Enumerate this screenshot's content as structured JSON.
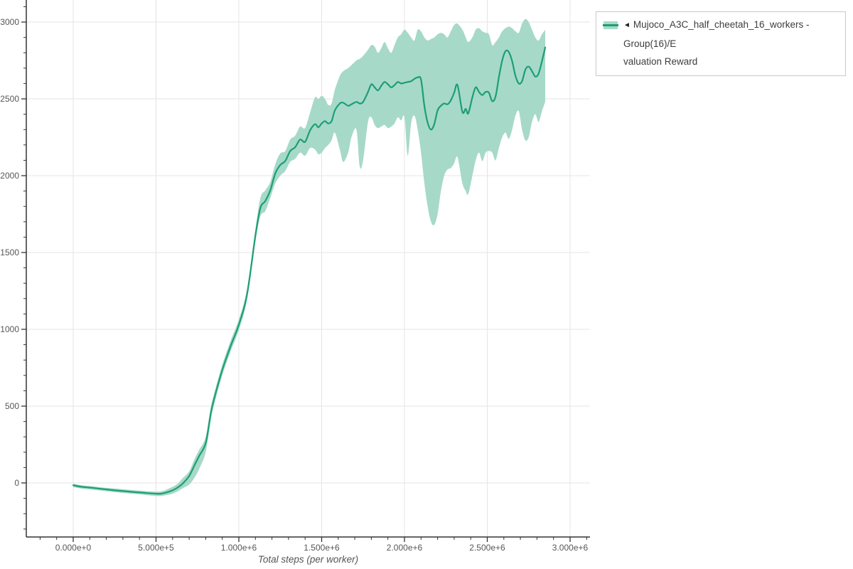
{
  "figure": {
    "background_color": "#ffffff"
  },
  "legend": {
    "toggle_icon": "◄",
    "series_label": "Mujoco_A3C_half_cheetah_16_workers - Group(16)/Evaluation Reward",
    "label_line1": "Mujoco_A3C_half_cheetah_16_workers - Group(16)/E",
    "label_line2": "valuation Reward",
    "swatch_band_color": "#a7d9c8",
    "swatch_line_color": "#1b9e77"
  },
  "chart_data": {
    "type": "line",
    "title": "",
    "xlabel": "Total steps (per worker)",
    "ylabel": "",
    "grid": true,
    "legend_position": "outside-top-right",
    "x_tick_values": [
      0,
      500000,
      1000000,
      1500000,
      2000000,
      2500000,
      3000000
    ],
    "x_tick_labels": [
      "0.000e+0",
      "5.000e+5",
      "1.000e+6",
      "1.500e+6",
      "2.000e+6",
      "2.500e+6",
      "3.000e+6"
    ],
    "x_minor_step": 100000,
    "y_tick_values": [
      0,
      500,
      1000,
      1500,
      2000,
      2500,
      3000
    ],
    "y_tick_labels": [
      "0",
      "500",
      "1000",
      "1500",
      "2000",
      "2500",
      "3000"
    ],
    "y_minor_step": 100,
    "xlim": [
      -283000,
      3120000
    ],
    "ylim": [
      -352,
      3143
    ],
    "colors": {
      "grid": "#e4e4e4",
      "axis": "#333333",
      "tick_label": "#565656",
      "axis_title": "#555555"
    },
    "series": [
      {
        "name": "Mujoco_A3C_half_cheetah_16_workers - Group(16)/Evaluation Reward",
        "line_color": "#1b9e77",
        "band_color": "#a7d9c8",
        "x": [
          0,
          50000,
          100000,
          150000,
          200000,
          250000,
          300000,
          350000,
          400000,
          450000,
          500000,
          530000,
          560000,
          600000,
          630000,
          660000,
          700000,
          730000,
          760000,
          800000,
          830000,
          850000,
          900000,
          950000,
          1000000,
          1050000,
          1100000,
          1130000,
          1160000,
          1190000,
          1220000,
          1250000,
          1280000,
          1310000,
          1340000,
          1370000,
          1400000,
          1430000,
          1460000,
          1480000,
          1500000,
          1520000,
          1540000,
          1560000,
          1580000,
          1610000,
          1630000,
          1660000,
          1680000,
          1710000,
          1730000,
          1750000,
          1780000,
          1800000,
          1820000,
          1840000,
          1860000,
          1880000,
          1900000,
          1920000,
          1940000,
          1960000,
          1980000,
          2000000,
          2020000,
          2040000,
          2060000,
          2080000,
          2100000,
          2120000,
          2140000,
          2160000,
          2180000,
          2200000,
          2220000,
          2240000,
          2260000,
          2280000,
          2300000,
          2320000,
          2350000,
          2370000,
          2385000,
          2410000,
          2430000,
          2450000,
          2470000,
          2490000,
          2510000,
          2530000,
          2550000,
          2570000,
          2590000,
          2610000,
          2630000,
          2650000,
          2670000,
          2690000,
          2710000,
          2730000,
          2750000,
          2770000,
          2790000,
          2810000,
          2830000,
          2850000
        ],
        "mean": [
          -15,
          -25,
          -30,
          -36,
          -42,
          -48,
          -53,
          -58,
          -62,
          -66,
          -70,
          -70,
          -63,
          -48,
          -30,
          -5,
          45,
          110,
          175,
          260,
          450,
          545,
          735,
          890,
          1030,
          1230,
          1610,
          1790,
          1835,
          1905,
          2015,
          2070,
          2095,
          2160,
          2185,
          2235,
          2220,
          2295,
          2335,
          2315,
          2340,
          2355,
          2340,
          2355,
          2425,
          2470,
          2475,
          2455,
          2465,
          2480,
          2470,
          2480,
          2545,
          2595,
          2575,
          2555,
          2585,
          2610,
          2595,
          2575,
          2590,
          2610,
          2600,
          2605,
          2610,
          2615,
          2630,
          2640,
          2625,
          2455,
          2345,
          2300,
          2335,
          2425,
          2455,
          2470,
          2465,
          2490,
          2540,
          2590,
          2415,
          2435,
          2405,
          2510,
          2575,
          2545,
          2525,
          2545,
          2540,
          2485,
          2515,
          2640,
          2750,
          2810,
          2805,
          2745,
          2650,
          2600,
          2615,
          2690,
          2710,
          2680,
          2645,
          2665,
          2745,
          2835
        ],
        "band_lower": [
          -27,
          -37,
          -42,
          -48,
          -54,
          -60,
          -65,
          -70,
          -74,
          -80,
          -85,
          -85,
          -80,
          -70,
          -55,
          -35,
          -10,
          30,
          90,
          200,
          400,
          505,
          700,
          855,
          995,
          1195,
          1570,
          1735,
          1770,
          1855,
          1950,
          2000,
          2030,
          2090,
          2110,
          2150,
          2130,
          2180,
          2170,
          2140,
          2150,
          2180,
          2200,
          2230,
          2280,
          2170,
          2090,
          2150,
          2250,
          2300,
          2060,
          2100,
          2350,
          2380,
          2330,
          2310,
          2320,
          2330,
          2310,
          2320,
          2340,
          2380,
          2360,
          2380,
          2130,
          2340,
          2390,
          2300,
          2150,
          1950,
          1800,
          1700,
          1680,
          1750,
          1900,
          2000,
          2040,
          2050,
          2080,
          2120,
          1950,
          1900,
          1880,
          2000,
          2100,
          2150,
          2095,
          2150,
          2160,
          2150,
          2100,
          2180,
          2250,
          2280,
          2240,
          2300,
          2390,
          2420,
          2300,
          2230,
          2250,
          2350,
          2400,
          2350,
          2420,
          2480
        ],
        "band_upper": [
          -5,
          -15,
          -20,
          -26,
          -32,
          -36,
          -41,
          -46,
          -50,
          -54,
          -57,
          -55,
          -45,
          -25,
          -5,
          30,
          75,
          150,
          215,
          300,
          490,
          580,
          770,
          925,
          1065,
          1265,
          1650,
          1855,
          1905,
          1960,
          2075,
          2145,
          2160,
          2235,
          2260,
          2320,
          2310,
          2410,
          2510,
          2500,
          2520,
          2500,
          2460,
          2470,
          2560,
          2650,
          2680,
          2700,
          2720,
          2750,
          2760,
          2780,
          2820,
          2850,
          2840,
          2800,
          2830,
          2870,
          2830,
          2800,
          2850,
          2900,
          2920,
          2950,
          2930,
          2900,
          2880,
          2950,
          2940,
          2900,
          2880,
          2890,
          2900,
          2920,
          2930,
          2920,
          2900,
          2940,
          2980,
          2990,
          2950,
          2900,
          2870,
          2900,
          2950,
          2960,
          2940,
          2930,
          2920,
          2850,
          2870,
          2900,
          2940,
          2960,
          2970,
          2960,
          2940,
          2930,
          2990,
          3020,
          3000,
          2950,
          2900,
          2880,
          2920,
          2950
        ]
      }
    ]
  }
}
